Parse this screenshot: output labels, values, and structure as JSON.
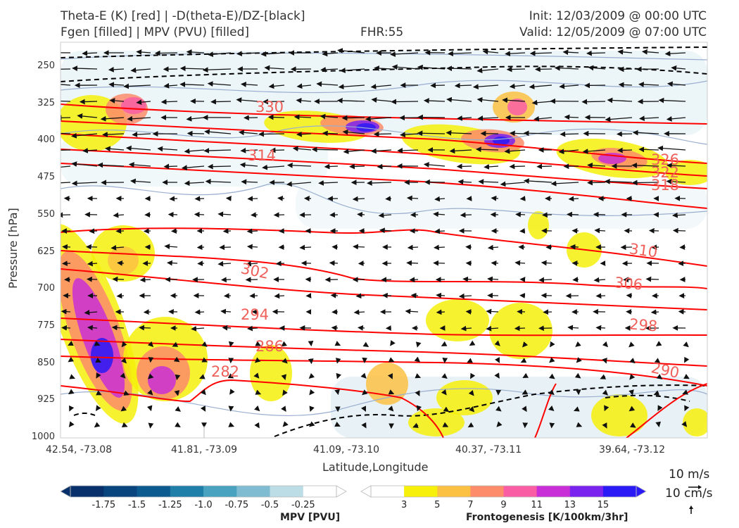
{
  "header": {
    "title_line1": "Theta-E (K) [red] | -D(theta-E)/DZ-[black]",
    "title_line2": "Fgen [filled] | MPV (PVU) [filled]",
    "fhr": "FHR:55",
    "init": "Init: 12/03/2009 @ 00:00 UTC",
    "valid": "Valid: 12/05/2009 @ 07:00 UTC"
  },
  "chart_data": {
    "type": "cross-section",
    "xlabel": "Latitude,Longitude",
    "ylabel": "Pressure [hPa]",
    "x_ticks": [
      "42.54, -73.08",
      "41.81, -73.09",
      "41.09, -73.10",
      "40.37, -73.11",
      "39.64, -73.12"
    ],
    "y_ticks": [
      250,
      325,
      400,
      475,
      550,
      625,
      700,
      775,
      850,
      925,
      1000
    ],
    "ylim": [
      1000,
      200
    ],
    "y_inverted": true,
    "theta_e_contours": [
      {
        "label": "330",
        "level": 330
      },
      {
        "label": "326",
        "level": 326
      },
      {
        "label": "322",
        "level": 322
      },
      {
        "label": "318",
        "level": 318
      },
      {
        "label": "314",
        "level": 314
      },
      {
        "label": "310",
        "level": 310
      },
      {
        "label": "306",
        "level": 306
      },
      {
        "label": "302",
        "level": 302
      },
      {
        "label": "298",
        "level": 298
      },
      {
        "label": "294",
        "level": 294
      },
      {
        "label": "290",
        "level": 290
      },
      {
        "label": "286",
        "level": 286
      },
      {
        "label": "282",
        "level": 282
      }
    ],
    "theta_e_color": "#ff0000",
    "theta_e_label_color": "#f0605a",
    "stability_color": "#000000",
    "wind_vector_color": "#111111"
  },
  "colorbars": {
    "mpv": {
      "title": "MPV [PVU]",
      "tick_labels": [
        "-1.75",
        "-1.5",
        "-1.25",
        "-1.0",
        "-0.75",
        "-0.5",
        "-0.25"
      ],
      "colors": [
        "#08306b",
        "#08457e",
        "#0b5a90",
        "#1f7fa8",
        "#48a2c0",
        "#7fbcd2",
        "#bcdde6",
        "#ffffff"
      ]
    },
    "fgen": {
      "title": "Frontogenesis [K/100km/3hr]",
      "tick_labels": [
        "3",
        "5",
        "7",
        "9",
        "11",
        "13",
        "15"
      ],
      "colors": [
        "#ffffff",
        "#f6f00a",
        "#fcc143",
        "#fc8c6a",
        "#f95ea4",
        "#c82fd6",
        "#7a22ee",
        "#2a1af5"
      ]
    }
  },
  "wind_legend": {
    "horizontal": "10 m/s",
    "vertical": "10 cm/s"
  }
}
